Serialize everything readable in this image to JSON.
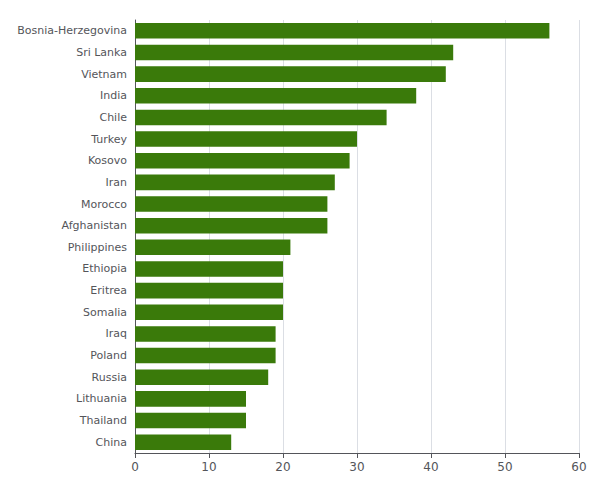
{
  "chart_data": {
    "type": "bar",
    "orientation": "horizontal",
    "categories": [
      "Bosnia-Herzegovina",
      "Sri Lanka",
      "Vietnam",
      "India",
      "Chile",
      "Turkey",
      "Kosovo",
      "Iran",
      "Morocco",
      "Afghanistan",
      "Philippines",
      "Ethiopia",
      "Eritrea",
      "Somalia",
      "Iraq",
      "Poland",
      "Russia",
      "Lithuania",
      "Thailand",
      "China"
    ],
    "values": [
      56,
      43,
      42,
      38,
      34,
      30,
      29,
      27,
      26,
      26,
      21,
      20,
      20,
      20,
      19,
      19,
      18,
      15,
      15,
      13
    ],
    "color": "#3a7a0a",
    "xlim": [
      0,
      60
    ],
    "xticks": [
      0,
      10,
      20,
      30,
      40,
      50,
      60
    ],
    "grid": true
  }
}
